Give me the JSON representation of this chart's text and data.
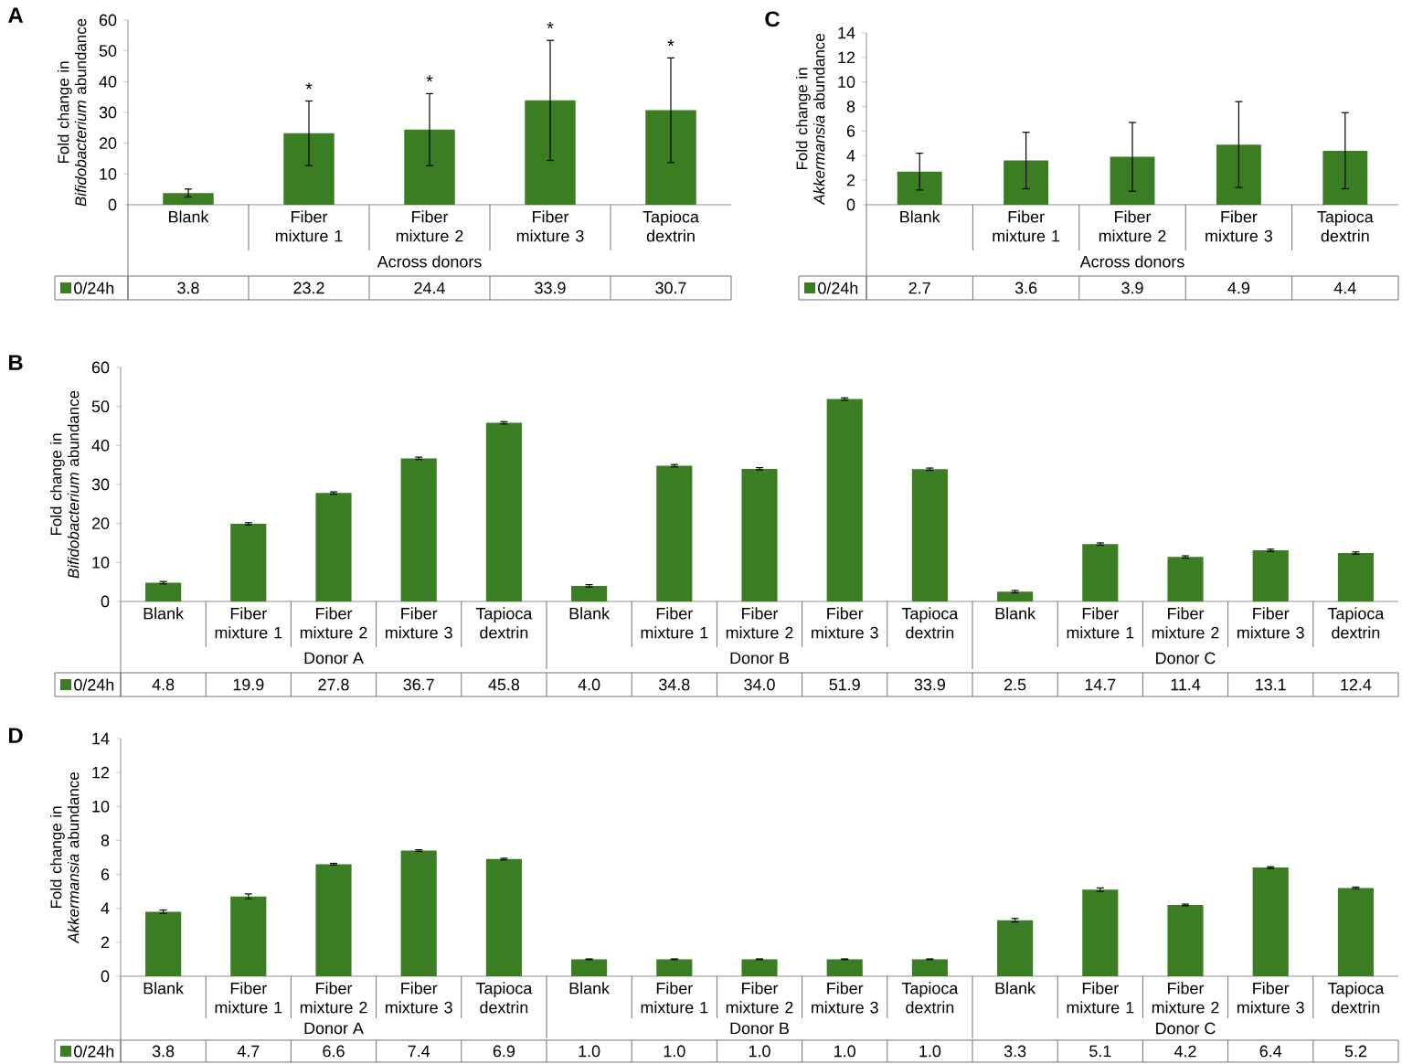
{
  "chart_data": [
    {
      "type": "bar",
      "title": "A",
      "ylabel": "Fold change in *Bifidobacterium* abundance",
      "xlabel": "Across donors",
      "categories": [
        "Blank",
        "Fiber mixture 1",
        "Fiber mixture 2",
        "Fiber mixture 3",
        "Tapioca dextrin"
      ],
      "series": [
        {
          "name": "0/24h",
          "color": "#3b7d23",
          "values": [
            3.8,
            23.2,
            24.4,
            33.9,
            30.7
          ],
          "errors": [
            1.3,
            10.5,
            11.7,
            19.5,
            17
          ]
        }
      ],
      "data_labels": true,
      "legend": "bottom left",
      "grid": false,
      "ylim": [
        0,
        60
      ],
      "yticks": [
        0,
        10,
        20,
        30,
        40,
        50,
        60
      ],
      "annotations": [
        "*",
        "*",
        "*",
        "*"
      ]
    },
    {
      "type": "bar",
      "title": "C",
      "ylabel": "Fold change in *Akkermansia* abundance",
      "xlabel": "Across donors",
      "categories": [
        "Blank",
        "Fiber mixture 1",
        "Fiber mixture 2",
        "Fiber mixture 3",
        "Tapioca dextrin"
      ],
      "series": [
        {
          "name": "0/24h",
          "color": "#3b7d23",
          "values": [
            2.7,
            3.6,
            3.9,
            4.9,
            4.4
          ],
          "errors": [
            1.5,
            2.3,
            2.8,
            3.5,
            3.1
          ]
        }
      ],
      "data_labels": true,
      "legend": "bottom left",
      "grid": false,
      "ylim": [
        0,
        14
      ],
      "yticks": [
        0,
        2,
        4,
        6,
        8,
        10,
        12,
        14
      ]
    },
    {
      "type": "bar",
      "title": "B",
      "ylabel": "Fold change in *Bifidobacterium* abundance",
      "categories": [
        "Blank",
        "Fiber mixture 1",
        "Fiber mixture 2",
        "Fiber mixture 3",
        "Tapioca dextrin",
        "Blank",
        "Fiber mixture 1",
        "Fiber mixture 2",
        "Fiber mixture 3",
        "Tapioca dextrin",
        "Blank",
        "Fiber mixture 1",
        "Fiber mixture 2",
        "Fiber mixture 3",
        "Tapioca dextrin"
      ],
      "series": [
        {
          "name": "0/24h",
          "color": "#3b7d23",
          "values": [
            4.8,
            19.9,
            27.8,
            36.7,
            45.8,
            4.0,
            34.8,
            34.0,
            51.9,
            33.9,
            2.5,
            14.7,
            11.4,
            13.1,
            12.4
          ],
          "errors": [
            0.3,
            0.3,
            0.3,
            0.3,
            0.3,
            0.3,
            0.3,
            0.3,
            0.3,
            0.3,
            0.3,
            0.3,
            0.3,
            0.3,
            0.3
          ],
          "value_labels": [
            "4.8",
            "19.9",
            "27.8",
            "36.7",
            "45.8",
            "4.0",
            "34.8",
            "34.0",
            "51.9",
            "33.9",
            "2.5",
            "14.7",
            "11.4",
            "13.1",
            "12.4"
          ]
        }
      ],
      "legend": "bottom left",
      "grid": false,
      "ylim": [
        0,
        60
      ],
      "yticks": [
        0,
        10,
        20,
        30,
        40,
        50,
        60
      ],
      "annotations": [
        "Donor A",
        "Donor B",
        "Donor C"
      ]
    },
    {
      "type": "bar",
      "title": "D",
      "ylabel": "Fold change in *Akkermansia* abundance",
      "categories": [
        "Blank",
        "Fiber mixture 1",
        "Fiber mixture 2",
        "Fiber mixture 3",
        "Tapioca dextrin",
        "Blank",
        "Fiber mixture 1",
        "Fiber mixture 2",
        "Fiber mixture 3",
        "Tapioca dextrin",
        "Blank",
        "Fiber mixture 1",
        "Fiber mixture 2",
        "Fiber mixture 3",
        "Tapioca dextrin"
      ],
      "series": [
        {
          "name": "0/24h",
          "color": "#3b7d23",
          "values": [
            3.8,
            4.7,
            6.6,
            7.4,
            6.9,
            1.0,
            1.0,
            1.0,
            1.0,
            1.0,
            3.3,
            5.1,
            4.2,
            6.4,
            5.2
          ],
          "errors": [
            0.1,
            0.15,
            0.05,
            0.05,
            0.05,
            0.02,
            0.02,
            0.02,
            0.02,
            0.02,
            0.1,
            0.1,
            0.05,
            0.05,
            0.05
          ],
          "value_labels": [
            "3.8",
            "4.7",
            "6.6",
            "7.4",
            "6.9",
            "1.0",
            "1.0",
            "1.0",
            "1.0",
            "1.0",
            "3.3",
            "5.1",
            "4.2",
            "6.4",
            "5.2"
          ]
        }
      ],
      "legend": "bottom left",
      "grid": false,
      "ylim": [
        0,
        14
      ],
      "yticks": [
        0,
        2,
        4,
        6,
        8,
        10,
        12,
        14
      ],
      "annotations": [
        "Donor A",
        "Donor B",
        "Donor C"
      ]
    }
  ]
}
